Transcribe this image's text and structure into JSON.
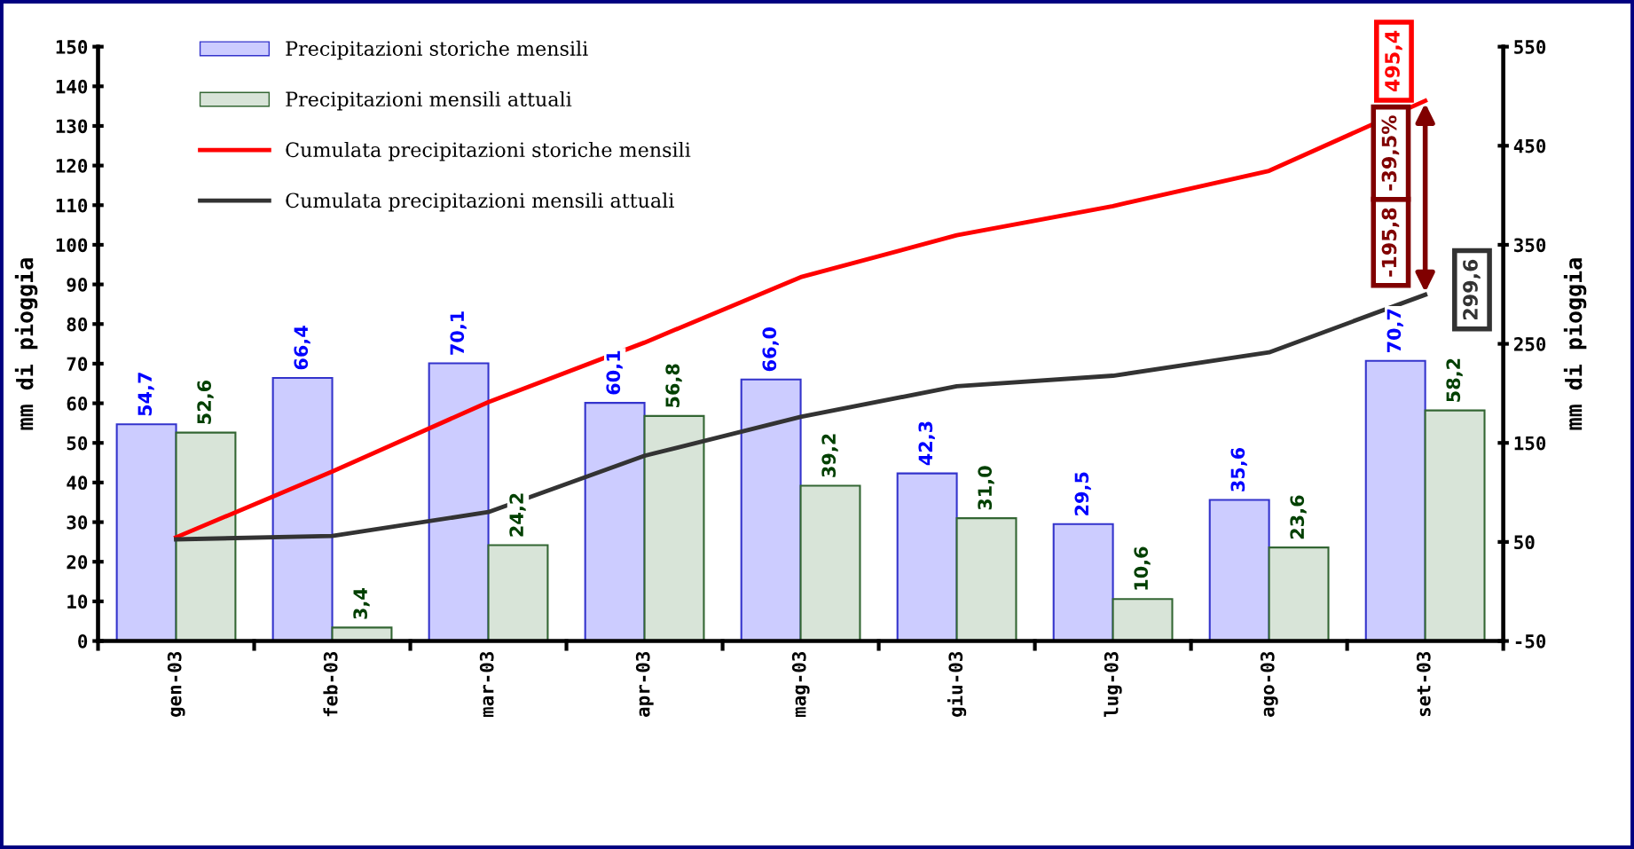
{
  "chart_data": {
    "type": "bar",
    "ylabel": "mm di pioggia",
    "y2label": "mm di pioggia",
    "categories": [
      "gen-03",
      "feb-03",
      "mar-03",
      "apr-03",
      "mag-03",
      "giu-03",
      "lug-03",
      "ago-03",
      "set-03"
    ],
    "series": [
      {
        "name": "Precipitazioni storiche mensili",
        "color": "#ccccff",
        "values": [
          54.7,
          66.4,
          70.1,
          60.1,
          66.0,
          42.3,
          29.5,
          35.6,
          70.7
        ],
        "value_labels": [
          "54,7",
          "66,4",
          "70,1",
          "60,1",
          "66,0",
          "42,3",
          "29,5",
          "35,6",
          "70,7"
        ]
      },
      {
        "name": "Precipitazioni mensili attuali",
        "color": "#d8e4d8",
        "values": [
          52.6,
          3.4,
          24.2,
          56.8,
          39.2,
          31.0,
          10.6,
          23.6,
          58.2
        ],
        "value_labels": [
          "52,6",
          "3,4",
          "24,2",
          "56,8",
          "39,2",
          "31,0",
          "10,6",
          "23,6",
          "58,2"
        ]
      },
      {
        "name": "Cumulata precipitazioni storiche mensili",
        "type": "line",
        "axis": "y2",
        "color": "#ff0000",
        "values": [
          54.7,
          121.1,
          191.2,
          251.3,
          317.3,
          359.6,
          389.1,
          424.7,
          495.4
        ]
      },
      {
        "name": "Cumulata precipitazioni mensili attuali",
        "type": "line",
        "axis": "y2",
        "color": "#333333",
        "values": [
          52.6,
          56.0,
          80.2,
          137.0,
          176.2,
          207.2,
          217.8,
          241.4,
          299.6
        ]
      }
    ],
    "ylim": [
      0,
      150
    ],
    "yticks": [
      0,
      10,
      20,
      30,
      40,
      50,
      60,
      70,
      80,
      90,
      100,
      110,
      120,
      130,
      140,
      150
    ],
    "y2lim": [
      -50,
      550
    ],
    "y2ticks": [
      -50,
      50,
      150,
      250,
      350,
      450,
      550
    ],
    "annotations": [
      "495,4",
      "299,6",
      "-195,8",
      "-39,5%"
    ],
    "legend": "top left",
    "marker": "none",
    "line_style": "solid",
    "grid": false
  }
}
